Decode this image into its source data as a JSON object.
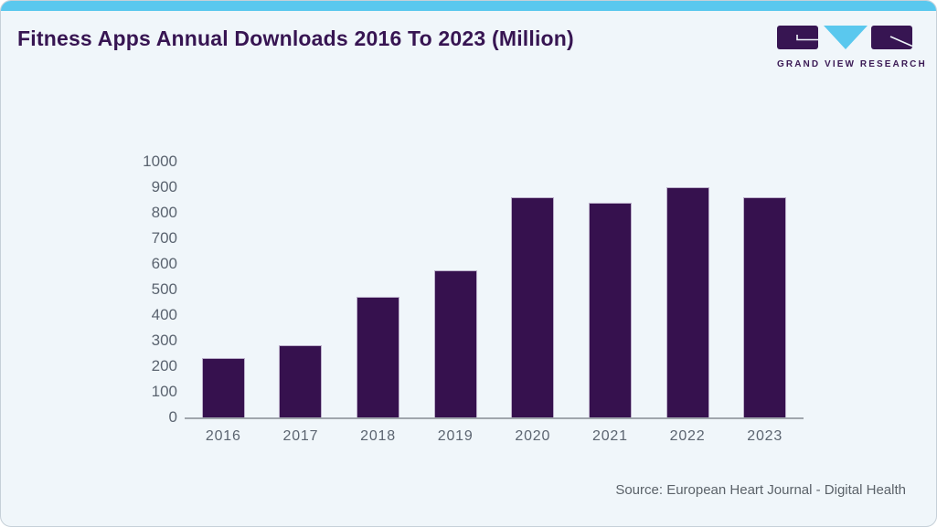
{
  "header": {
    "title": "Fitness Apps Annual Downloads 2016 To 2023 (Million)",
    "logo_text": "GRAND VIEW RESEARCH"
  },
  "source": {
    "label": "Source: European Heart Journal - Digital Health"
  },
  "chart_data": {
    "type": "bar",
    "title": "Fitness Apps Annual Downloads 2016 To 2023 (Million)",
    "categories": [
      "2016",
      "2017",
      "2018",
      "2019",
      "2020",
      "2021",
      "2022",
      "2023"
    ],
    "values": [
      228,
      280,
      467,
      570,
      858,
      834,
      896,
      858
    ],
    "xlabel": "",
    "ylabel": "",
    "ylim": [
      0,
      1000
    ],
    "ytick_step": 100,
    "yticks": [
      0,
      100,
      200,
      300,
      400,
      500,
      600,
      700,
      800,
      900,
      1000
    ],
    "grid": false,
    "legend_position": "none",
    "bar_color": "#36114e"
  },
  "colors": {
    "accent_blue": "#5ac8ee",
    "brand_purple": "#371552",
    "bar_fill": "#36114e",
    "bar_border": "#bcb0ca",
    "background": "#f0f6fa",
    "axis_text": "#5b6470",
    "axis_line": "#a0a6ad",
    "source_text": "#5b6269"
  }
}
